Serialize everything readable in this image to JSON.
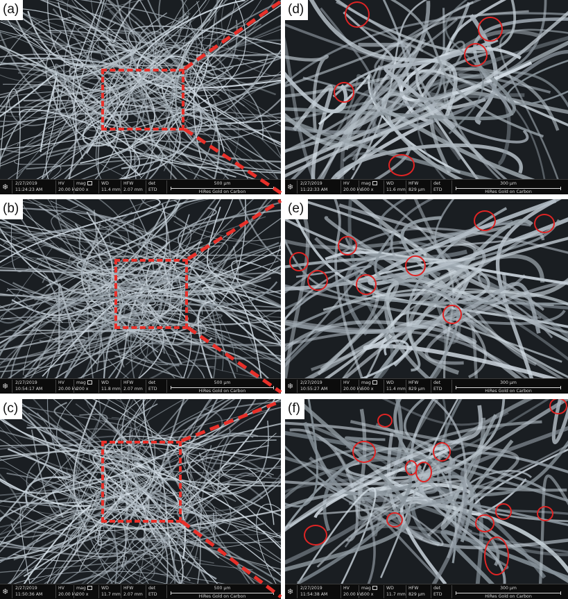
{
  "panels": [
    {
      "label": "(a)",
      "date": "2/27/2019",
      "time": "11:24:23 AM",
      "hv": "20.00 kV",
      "mag": "200 x",
      "wd": "11.4 mm",
      "hfw": "2.07 mm",
      "det": "ETD",
      "scale": "500 μm",
      "sample": "HiRes Gold on Carbon"
    },
    {
      "label": "(b)",
      "date": "2/27/2019",
      "time": "10:54:17 AM",
      "hv": "20.00 kV",
      "mag": "200 x",
      "wd": "11.8 mm",
      "hfw": "2.07 mm",
      "det": "ETD",
      "scale": "500 μm",
      "sample": "HiRes Gold on Carbon"
    },
    {
      "label": "(c)",
      "date": "2/27/2019",
      "time": "11:50:36 AM",
      "hv": "20.00 kV",
      "mag": "200 x",
      "wd": "11.7 mm",
      "hfw": "2.07 mm",
      "det": "ETD",
      "scale": "500 μm",
      "sample": "HiRes Gold on Carbon"
    },
    {
      "label": "(d)",
      "date": "2/27/2019",
      "time": "11:22:33 AM",
      "hv": "20.00 kV",
      "mag": "500 x",
      "wd": "11.6 mm",
      "hfw": "829 μm",
      "det": "ETD",
      "scale": "300 μm",
      "sample": "HiRes Gold on Carbon"
    },
    {
      "label": "(e)",
      "date": "2/27/2019",
      "time": "10:55:27 AM",
      "hv": "20.00 kV",
      "mag": "500 x",
      "wd": "11.4 mm",
      "hfw": "829 μm",
      "det": "ETD",
      "scale": "300 μm",
      "sample": "HiRes Gold on Carbon"
    },
    {
      "label": "(f)",
      "date": "2/27/2019",
      "time": "11:54:38 AM",
      "hv": "20.00 kV",
      "mag": "500 x",
      "wd": "11.7 mm",
      "hfw": "829 μm",
      "det": "ETD",
      "scale": "300 μm",
      "sample": "HiRes Gold on Carbon"
    }
  ],
  "infobar_headers": {
    "hv": "HV",
    "mag": "mag",
    "wd": "WD",
    "hfw": "HFW",
    "det": "det"
  },
  "colors": {
    "highlight": "#e02424",
    "zoom_box": "#e8302a",
    "fiber": "#b9c3c9",
    "background": "#1a1e22"
  },
  "icons": {
    "detector_logo": "snowflake-icon"
  }
}
